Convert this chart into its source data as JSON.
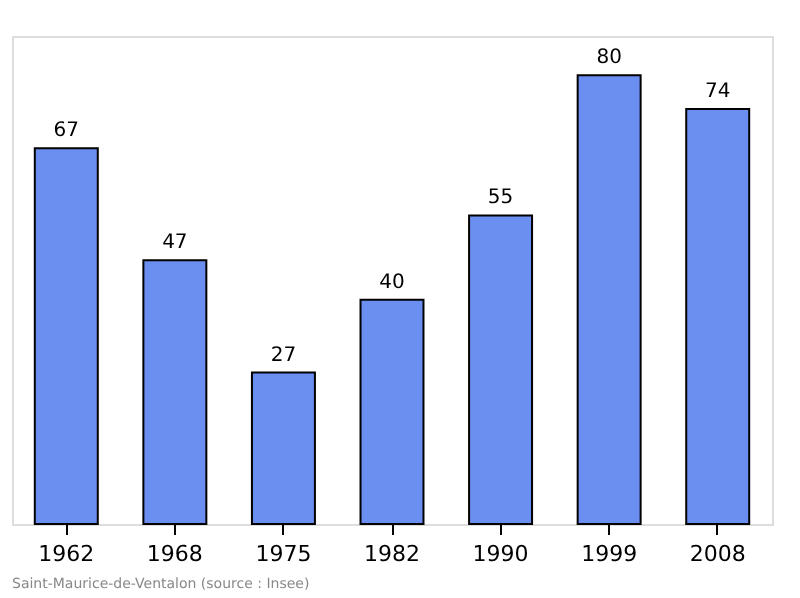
{
  "chart_data": {
    "type": "bar",
    "categories": [
      "1962",
      "1968",
      "1975",
      "1982",
      "1990",
      "1999",
      "2008"
    ],
    "values": [
      67,
      47,
      27,
      40,
      55,
      80,
      74
    ],
    "color": "#6b8ff0",
    "ylim": [
      0,
      87
    ],
    "data_labels": true,
    "grid": false,
    "tick_labels": "x",
    "annotations": [
      "Saint-Maurice-de-Ventalon    (source : Insee)"
    ]
  }
}
